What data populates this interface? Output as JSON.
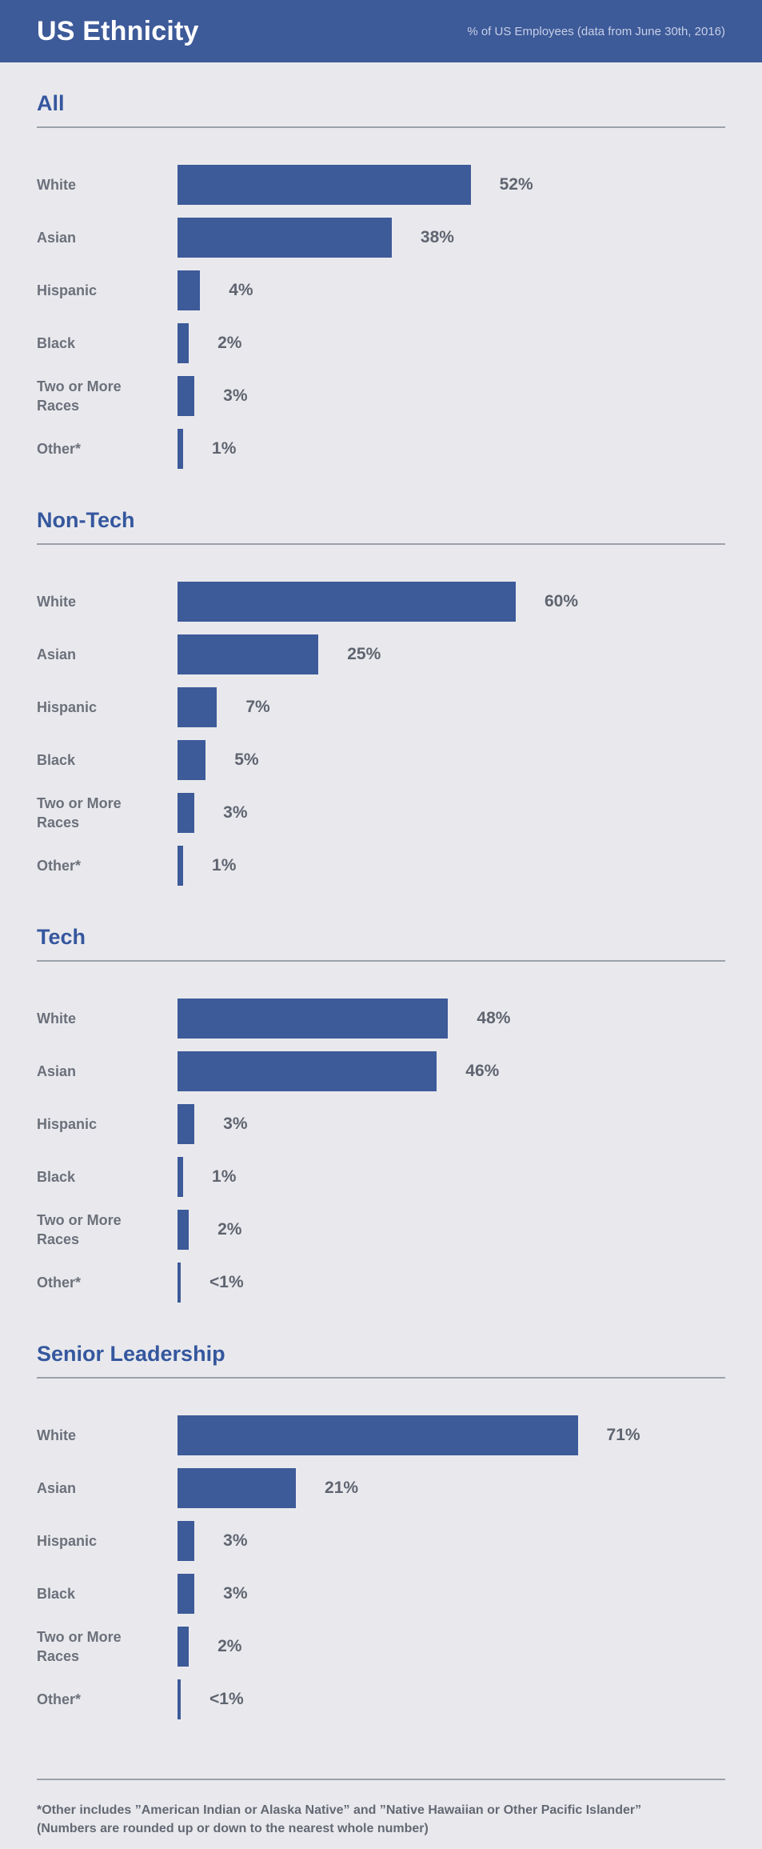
{
  "header": {
    "title": "US Ethnicity",
    "subtitle": "% of US Employees (data from June 30th, 2016)"
  },
  "colors": {
    "header_background": "#3d5a99",
    "bar_fill": "#3d5a99",
    "section_title_text": "#35579e",
    "label_text": "#6b707b",
    "value_text": "#5f6470",
    "page_background": "#e9e9ed",
    "divider": "#9ba1ab"
  },
  "chart_data": [
    {
      "type": "bar",
      "orientation": "horizontal",
      "title": "All",
      "categories": [
        "White",
        "Asian",
        "Hispanic",
        "Black",
        "Two or More Races",
        "Other*"
      ],
      "values": [
        52,
        38,
        4,
        2,
        3,
        1
      ],
      "value_labels": [
        "52%",
        "38%",
        "4%",
        "2%",
        "3%",
        "1%"
      ],
      "xlim": [
        0,
        100
      ],
      "grid": false,
      "legend": false
    },
    {
      "type": "bar",
      "orientation": "horizontal",
      "title": "Non-Tech",
      "categories": [
        "White",
        "Asian",
        "Hispanic",
        "Black",
        "Two or More Races",
        "Other*"
      ],
      "values": [
        60,
        25,
        7,
        5,
        3,
        1
      ],
      "value_labels": [
        "60%",
        "25%",
        "7%",
        "5%",
        "3%",
        "1%"
      ],
      "xlim": [
        0,
        100
      ],
      "grid": false,
      "legend": false
    },
    {
      "type": "bar",
      "orientation": "horizontal",
      "title": "Tech",
      "categories": [
        "White",
        "Asian",
        "Hispanic",
        "Black",
        "Two or More Races",
        "Other*"
      ],
      "values": [
        48,
        46,
        3,
        1,
        2,
        0.5
      ],
      "value_labels": [
        "48%",
        "46%",
        "3%",
        "1%",
        "2%",
        "<1%"
      ],
      "xlim": [
        0,
        100
      ],
      "grid": false,
      "legend": false
    },
    {
      "type": "bar",
      "orientation": "horizontal",
      "title": "Senior Leadership",
      "categories": [
        "White",
        "Asian",
        "Hispanic",
        "Black",
        "Two or More Races",
        "Other*"
      ],
      "values": [
        71,
        21,
        3,
        3,
        2,
        0.5
      ],
      "value_labels": [
        "71%",
        "21%",
        "3%",
        "3%",
        "2%",
        "<1%"
      ],
      "xlim": [
        0,
        100
      ],
      "grid": false,
      "legend": false
    }
  ],
  "footer": {
    "line1": "*Other includes ”American Indian or Alaska Native” and ”Native Hawaiian or Other Pacific Islander”",
    "line2": "(Numbers are rounded up or down to the nearest whole number)"
  }
}
